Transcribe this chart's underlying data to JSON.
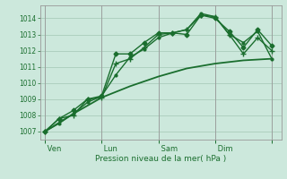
{
  "background_color": "#cce8dc",
  "grid_color": "#aaccbb",
  "line_color": "#1a6e2e",
  "xlabel": "Pression niveau de la mer( hPa )",
  "ylim": [
    1006.5,
    1014.8
  ],
  "yticks": [
    1007,
    1008,
    1009,
    1010,
    1011,
    1012,
    1013,
    1014
  ],
  "xlim": [
    -4,
    200
  ],
  "series": [
    {
      "x": [
        0,
        12,
        24,
        36,
        48,
        60,
        72,
        84,
        96,
        108,
        120,
        132,
        144,
        156,
        168,
        180,
        192
      ],
      "y": [
        1007.0,
        1007.8,
        1008.3,
        1009.0,
        1009.2,
        1011.8,
        1011.8,
        1012.5,
        1013.1,
        1013.1,
        1013.0,
        1014.2,
        1014.0,
        1013.2,
        1012.2,
        1013.3,
        1012.3
      ],
      "marker": "D",
      "ms": 2.5,
      "lw": 1.0
    },
    {
      "x": [
        0,
        12,
        24,
        36,
        48,
        60,
        72,
        84,
        96,
        108,
        120,
        132,
        144,
        156,
        168,
        180,
        192
      ],
      "y": [
        1007.0,
        1007.8,
        1008.0,
        1009.0,
        1009.1,
        1011.2,
        1011.5,
        1012.2,
        1013.0,
        1013.1,
        1013.3,
        1014.2,
        1014.1,
        1013.0,
        1011.8,
        1012.8,
        1012.0
      ],
      "marker": "+",
      "ms": 4,
      "lw": 1.0
    },
    {
      "x": [
        0,
        24,
        48,
        72,
        96,
        120,
        144,
        168,
        192
      ],
      "y": [
        1007.0,
        1008.1,
        1009.1,
        1009.8,
        1010.4,
        1010.9,
        1011.2,
        1011.4,
        1011.5
      ],
      "marker": null,
      "ms": 0,
      "lw": 1.3
    },
    {
      "x": [
        0,
        12,
        24,
        36,
        48,
        60,
        72,
        84,
        96,
        108,
        120,
        132,
        144,
        156,
        168,
        180,
        192
      ],
      "y": [
        1007.0,
        1007.5,
        1008.1,
        1008.8,
        1009.2,
        1010.5,
        1011.6,
        1012.1,
        1012.8,
        1013.1,
        1013.3,
        1014.3,
        1014.1,
        1013.0,
        1012.5,
        1013.2,
        1011.5
      ],
      "marker": "o",
      "ms": 2.0,
      "lw": 1.0
    }
  ],
  "vlines": [
    0,
    48,
    96,
    144,
    192
  ],
  "xtick_positions": [
    0,
    48,
    96,
    144,
    192
  ],
  "xtick_labels": [
    " Ven",
    " Lun",
    " Sam",
    " Dim",
    ""
  ]
}
